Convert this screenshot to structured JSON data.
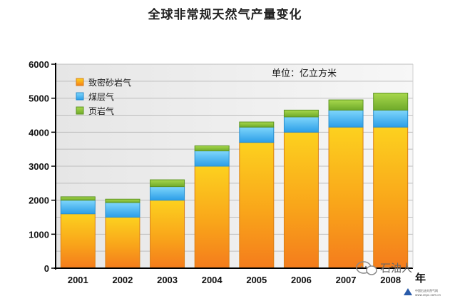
{
  "chart_data": {
    "type": "bar",
    "stacked": true,
    "title": "全球非常规天然气产量变化",
    "unit_label": "单位：亿立方米",
    "categories": [
      "2001",
      "2002",
      "2003",
      "2004",
      "2005",
      "2006",
      "2007",
      "2008"
    ],
    "category_suffix": "年",
    "series": [
      {
        "name": "致密砂岩气",
        "color": "#f7a21b",
        "values": [
          1600,
          1500,
          2000,
          3000,
          3700,
          4000,
          4150,
          4150
        ]
      },
      {
        "name": "煤层气",
        "color": "#3fb2f0",
        "values": [
          400,
          430,
          400,
          450,
          450,
          450,
          500,
          500
        ]
      },
      {
        "name": "页岩气",
        "color": "#8cc63f",
        "values": [
          100,
          100,
          200,
          150,
          150,
          200,
          300,
          500
        ]
      }
    ],
    "ylim": [
      0,
      6000
    ],
    "yticks": [
      0,
      1000,
      2000,
      3000,
      4000,
      5000,
      6000
    ],
    "grid": true,
    "legend_position": "top-left"
  },
  "watermark": {
    "text": "石油人",
    "logo_line1": "中国石油天然气网",
    "logo_line2": "www.cnpc.com.cn"
  }
}
